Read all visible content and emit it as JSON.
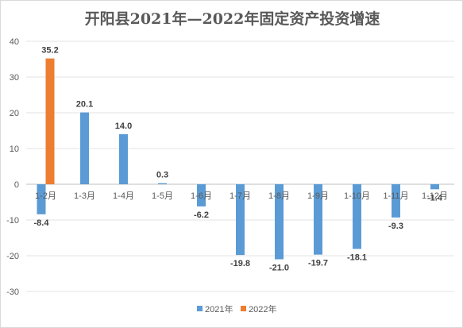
{
  "chart_data": {
    "type": "bar",
    "title": "开阳县2021年—2022年固定资产投资增速",
    "categories": [
      "1-2月",
      "1-3月",
      "1-4月",
      "1-5月",
      "1-6月",
      "1-7月",
      "1-8月",
      "1-9月",
      "1-10月",
      "1-11月",
      "1-12月"
    ],
    "series": [
      {
        "name": "2021年",
        "color": "#5b9bd5",
        "values": [
          -8.4,
          20.1,
          14.0,
          0.3,
          -6.2,
          -19.8,
          -21.0,
          -19.7,
          -18.1,
          -9.3,
          -1.4
        ],
        "labels": [
          "-8.4",
          "20.1",
          "14.0",
          "0.3",
          "-6.2",
          "-19.8",
          "-21.0",
          "-19.7",
          "-18.1",
          "-9.3",
          "-1.4"
        ]
      },
      {
        "name": "2022年",
        "color": "#ed7d31",
        "values": [
          35.2,
          null,
          null,
          null,
          null,
          null,
          null,
          null,
          null,
          null,
          null
        ],
        "labels": [
          "35.2",
          "",
          "",
          "",
          "",
          "",
          "",
          "",
          "",
          "",
          ""
        ]
      }
    ],
    "ylim": [
      -30,
      40
    ],
    "yticks": [
      40,
      30,
      20,
      10,
      0,
      -10,
      -20,
      -30
    ],
    "grid": true,
    "legend": "bottom"
  }
}
